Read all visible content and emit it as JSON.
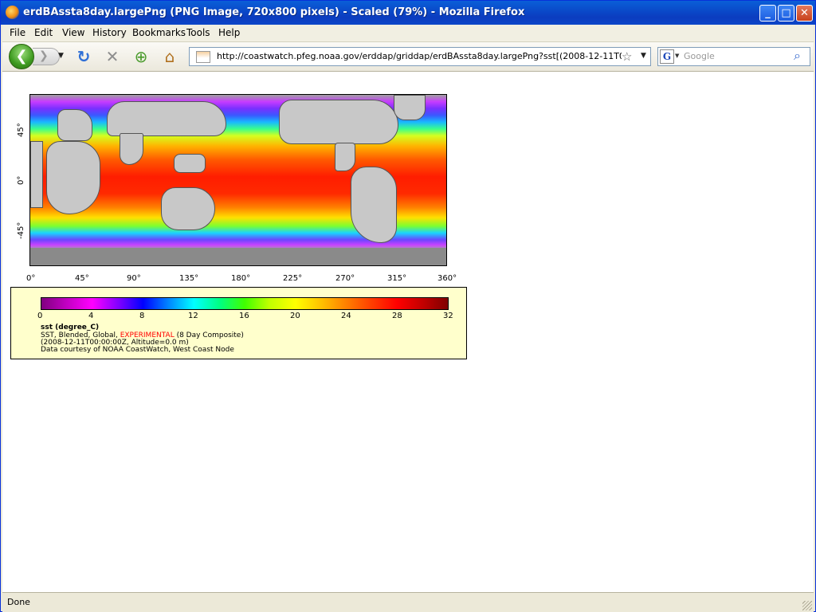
{
  "window": {
    "title": "erdBAssta8day.largePng (PNG Image, 720x800 pixels) - Scaled (79%) - Mozilla Firefox",
    "controls": {
      "minimize": "_",
      "maximize": "□",
      "close": "✕"
    }
  },
  "menubar": {
    "items": [
      "File",
      "Edit",
      "View",
      "History",
      "Bookmarks",
      "Tools",
      "Help"
    ]
  },
  "navbar": {
    "back_glyph": "❮",
    "forward_glyph": "❯",
    "reload_glyph": "↻",
    "stop_glyph": "✕",
    "new_tab_glyph": "⊕",
    "home_glyph": "⌂",
    "url": "http://coastwatch.pfeg.noaa.gov/erddap/griddap/erdBAssta8day.largePng?sst[(2008-12-11T00:00:00Z",
    "star_glyph": "☆",
    "search_engine": "G",
    "search_placeholder": "Google",
    "search_glyph": "⌕"
  },
  "map": {
    "y_ticks": [
      "45°",
      "0°",
      "-45°"
    ],
    "x_ticks": [
      "0°",
      "45°",
      "90°",
      "135°",
      "180°",
      "225°",
      "270°",
      "315°",
      "360°"
    ]
  },
  "legend": {
    "colorbar_ticks": [
      "0",
      "4",
      "8",
      "12",
      "16",
      "20",
      "24",
      "28",
      "32"
    ],
    "variable": "sst (degree_C)",
    "line2_prefix": "SST, Blended, Global, ",
    "line2_flag": "EXPERIMENTAL",
    "line2_suffix": " (8 Day Composite)",
    "line3": "(2008-12-11T00:00:00Z, Altitude=0.0 m)",
    "line4": "Data courtesy of NOAA CoastWatch, West Coast Node"
  },
  "colors": {
    "flag_red": "#ff0000",
    "legend_bg": "#ffffcc",
    "titlebar_blue": "#0a48c8"
  },
  "statusbar": {
    "text": "Done"
  }
}
